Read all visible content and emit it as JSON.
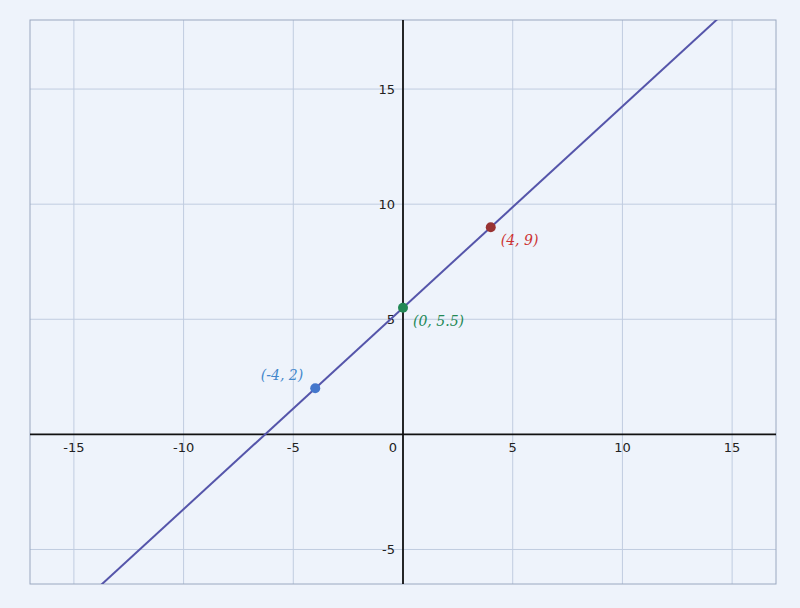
{
  "chart_data": {
    "type": "scatter",
    "xlim": [
      -17,
      17
    ],
    "ylim": [
      -6.5,
      18
    ],
    "xticks": [
      -15,
      -10,
      -5,
      0,
      5,
      10,
      15
    ],
    "yticks": [
      -5,
      5,
      10,
      15
    ],
    "grid": true,
    "series": [
      {
        "type": "line",
        "color": "#5555aa",
        "x": [
          -4,
          4
        ],
        "values": [
          2,
          9
        ]
      },
      {
        "type": "scatter",
        "x": [
          -4,
          4,
          0
        ],
        "values": [
          2,
          9,
          5.5
        ],
        "colors": [
          "#4477cc",
          "#993333",
          "#228855"
        ]
      }
    ],
    "annotations": [
      {
        "text": "(-4, 2)",
        "x": -4,
        "y": 2,
        "color": "#4488cc"
      },
      {
        "text": "(4, 9)",
        "x": 4,
        "y": 9,
        "color": "#cc3333"
      },
      {
        "text": "(0, 5.5)",
        "x": 0,
        "y": 5.5,
        "color": "#228855"
      }
    ]
  }
}
